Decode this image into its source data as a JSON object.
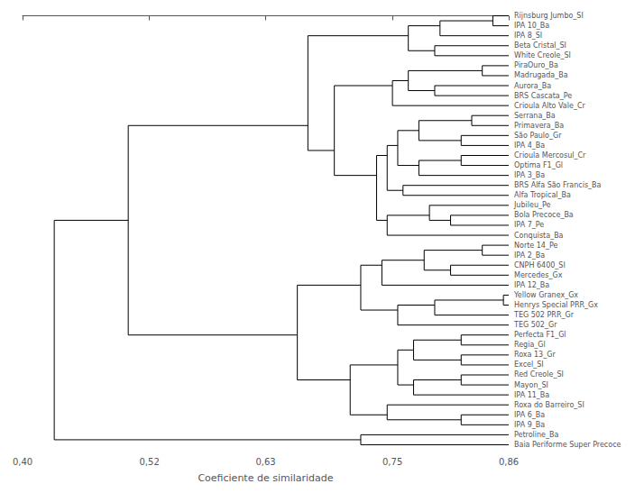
{
  "chart_data": {
    "type": "dendrogram",
    "xlabel": "Coeficiente de similaridade",
    "color": "#000000",
    "grid": false,
    "xlim": [
      0.4,
      0.86
    ],
    "xticks": [
      {
        "value": 0.4,
        "label": "0,40"
      },
      {
        "value": 0.52,
        "label": "0,52"
      },
      {
        "value": 0.63,
        "label": "0,63"
      },
      {
        "value": 0.75,
        "label": "0,75"
      },
      {
        "value": 0.86,
        "label": "0,86"
      }
    ],
    "categories": [
      "Rijnsburg Jumbo_SI",
      "IPA 10_Ba",
      "IPA 8_SI",
      "Beta Cristal_SI",
      "White Creole_SI",
      "PiraOuro_Ba",
      "Madrugada_Ba",
      "Aurora_Ba",
      "BRS Cascata_Pe",
      "Crioula Alto Vale_Cr",
      "Serrana_Ba",
      "Primavera_Ba",
      "São Paulo_Gr",
      "IPA 4_Ba",
      "Crioula Mercosul_Cr",
      "Optima F1_Gl",
      "IPA 3_Ba",
      "BRS Alfa São Francis_Ba",
      "Alfa Tropical_Ba",
      "Jubileu_Pe",
      "Bola Precoce_Ba",
      "IPA 7_Pe",
      "Conquista_Ba",
      "Norte 14_Pe",
      "IPA 2_Ba",
      "CNPH 6400_SI",
      "Mercedes_Gx",
      "IPA 12_Ba",
      "Yellow Granex_Gx",
      "Henrys Special PRR_Gx",
      "TEG 502 PRR_Gr",
      "TEG 502_Gr",
      "Perfecta F1_Gl",
      "Regia_Gl",
      "Roxa 13_Gr",
      "Excel_SI",
      "Red Creole_SI",
      "Mayon_SI",
      "IPA 11_Ba",
      "Roxa do Barreiro_SI",
      "IPA 6_Ba",
      "IPA 9_Ba",
      "Petroline_Ba",
      "Baia Periforme Super Precoce"
    ],
    "tree": {
      "similarity": 0.43,
      "children": [
        {
          "similarity": 0.5,
          "children": [
            {
              "similarity": 0.67,
              "children": [
                {
                  "similarity": 0.765,
                  "children": [
                    {
                      "similarity": 0.795,
                      "children": [
                        {
                          "similarity": 0.845,
                          "children": [
                            "Rijnsburg Jumbo_SI",
                            "IPA 10_Ba"
                          ]
                        },
                        "IPA 8_SI"
                      ]
                    },
                    {
                      "similarity": 0.79,
                      "children": [
                        "Beta Cristal_SI",
                        "White Creole_SI"
                      ]
                    }
                  ]
                },
                {
                  "similarity": 0.695,
                  "children": [
                    {
                      "similarity": 0.75,
                      "children": [
                        {
                          "similarity": 0.765,
                          "children": [
                            {
                              "similarity": 0.835,
                              "children": [
                                "PiraOuro_Ba",
                                "Madrugada_Ba"
                              ]
                            },
                            {
                              "similarity": 0.79,
                              "children": [
                                "Aurora_Ba",
                                "BRS Cascata_Pe"
                              ]
                            }
                          ]
                        },
                        "Crioula Alto Vale_Cr"
                      ]
                    },
                    {
                      "similarity": 0.735,
                      "children": [
                        {
                          "similarity": 0.745,
                          "children": [
                            {
                              "similarity": 0.755,
                              "children": [
                                {
                                  "similarity": 0.775,
                                  "children": [
                                    {
                                      "similarity": 0.825,
                                      "children": [
                                        "Serrana_Ba",
                                        "Primavera_Ba"
                                      ]
                                    },
                                    {
                                      "similarity": 0.815,
                                      "children": [
                                        "São Paulo_Gr",
                                        "IPA 4_Ba"
                                      ]
                                    }
                                  ]
                                },
                                {
                                  "similarity": 0.775,
                                  "children": [
                                    {
                                      "similarity": 0.815,
                                      "children": [
                                        "Crioula Mercosul_Cr",
                                        "Optima F1_Gl"
                                      ]
                                    },
                                    "IPA 3_Ba"
                                  ]
                                }
                              ]
                            },
                            {
                              "similarity": 0.76,
                              "children": [
                                "BRS Alfa São Francis_Ba",
                                "Alfa Tropical_Ba"
                              ]
                            }
                          ]
                        },
                        {
                          "similarity": 0.745,
                          "children": [
                            {
                              "similarity": 0.785,
                              "children": [
                                "Jubileu_Pe",
                                {
                                  "similarity": 0.805,
                                  "children": [
                                    "Bola Precoce_Ba",
                                    "IPA 7_Pe"
                                  ]
                                }
                              ]
                            },
                            "Conquista_Ba"
                          ]
                        }
                      ]
                    }
                  ]
                }
              ]
            },
            {
              "similarity": 0.66,
              "children": [
                {
                  "similarity": 0.72,
                  "children": [
                    {
                      "similarity": 0.74,
                      "children": [
                        {
                          "similarity": 0.78,
                          "children": [
                            {
                              "similarity": 0.835,
                              "children": [
                                "Norte 14_Pe",
                                "IPA 2_Ba"
                              ]
                            },
                            {
                              "similarity": 0.805,
                              "children": [
                                "CNPH 6400_SI",
                                "Mercedes_Gx"
                              ]
                            }
                          ]
                        },
                        "IPA 12_Ba"
                      ]
                    },
                    {
                      "similarity": 0.755,
                      "children": [
                        {
                          "similarity": 0.79,
                          "children": [
                            {
                              "similarity": 0.855,
                              "children": [
                                "Yellow Granex_Gx",
                                "Henrys Special PRR_Gx"
                              ]
                            },
                            "TEG 502 PRR_Gr"
                          ]
                        },
                        "TEG 502_Gr"
                      ]
                    }
                  ]
                },
                {
                  "similarity": 0.71,
                  "children": [
                    {
                      "similarity": 0.755,
                      "children": [
                        {
                          "similarity": 0.77,
                          "children": [
                            {
                              "similarity": 0.815,
                              "children": [
                                "Perfecta F1_Gl",
                                "Regia_Gl"
                              ]
                            },
                            {
                              "similarity": 0.815,
                              "children": [
                                "Roxa 13_Gr",
                                "Excel_SI"
                              ]
                            }
                          ]
                        },
                        {
                          "similarity": 0.77,
                          "children": [
                            {
                              "similarity": 0.815,
                              "children": [
                                "Red Creole_SI",
                                "Mayon_SI"
                              ]
                            },
                            "IPA 11_Ba"
                          ]
                        }
                      ]
                    },
                    {
                      "similarity": 0.745,
                      "children": [
                        "Roxa do Barreiro_SI",
                        {
                          "similarity": 0.815,
                          "children": [
                            "IPA 6_Ba",
                            "IPA 9_Ba"
                          ]
                        }
                      ]
                    }
                  ]
                }
              ]
            }
          ]
        },
        {
          "similarity": 0.72,
          "children": [
            "Petroline_Ba",
            "Baia Periforme Super Precoce"
          ]
        }
      ]
    }
  }
}
